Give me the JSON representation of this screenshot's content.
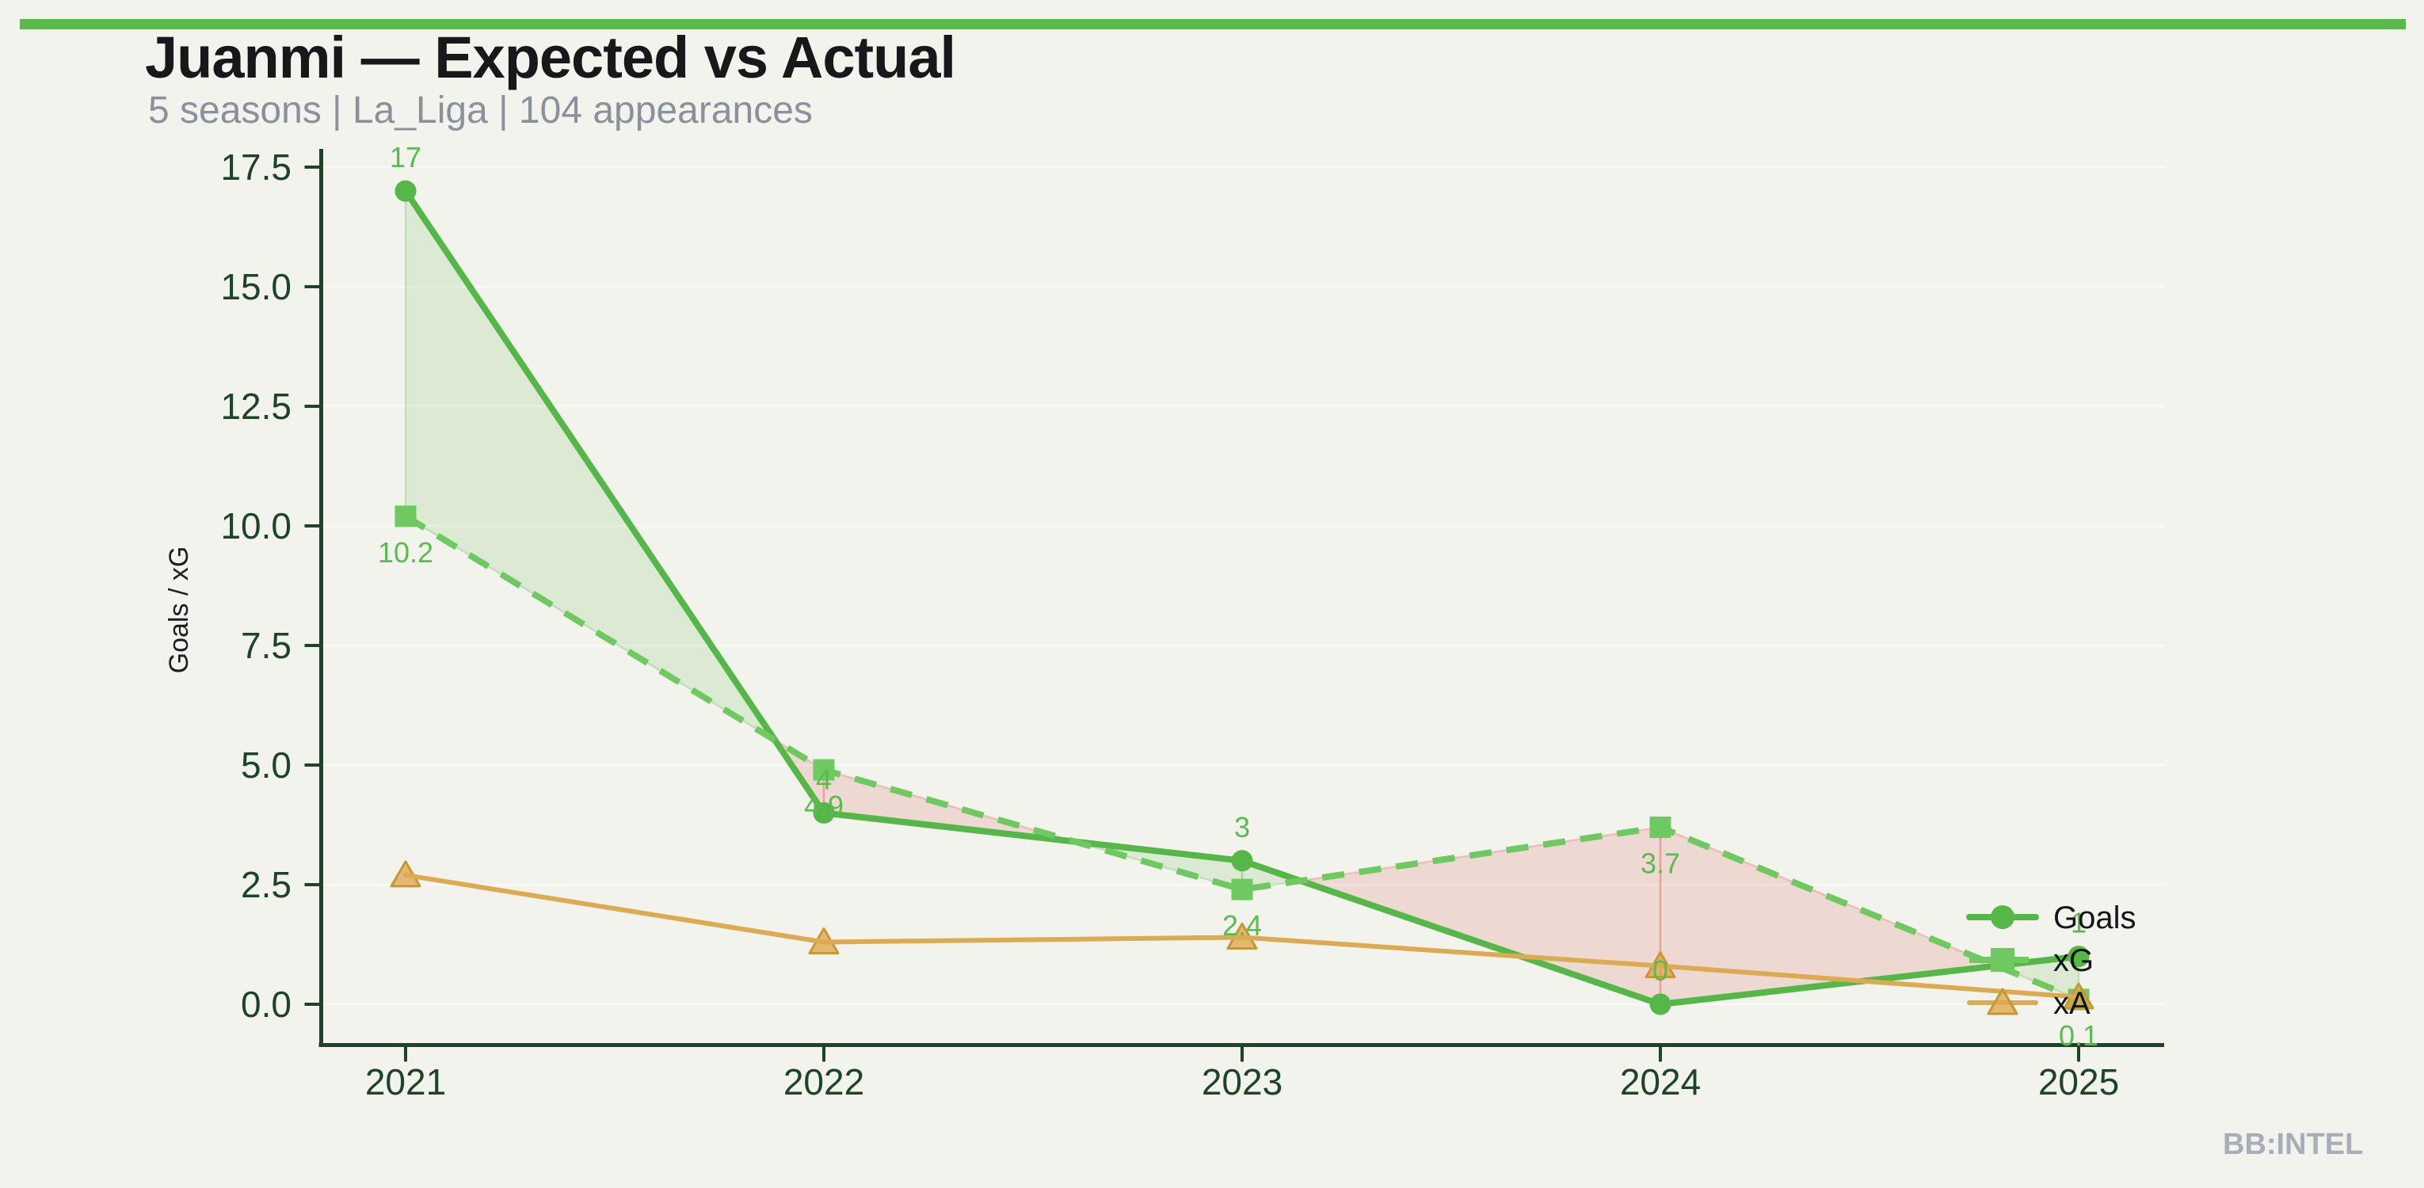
{
  "page": {
    "title": "Juanmi — Expected vs Actual",
    "subtitle": "5 seasons | La_Liga | 104 appearances",
    "watermark": "BB:INTEL",
    "accent_bar_color": "#5bb84d",
    "background_color": "#f2f3ec"
  },
  "chart_data": {
    "type": "line",
    "title": "Juanmi — Expected vs Actual",
    "subtitle": "5 seasons | La_Liga | 104 appearances",
    "x": [
      2021,
      2022,
      2023,
      2024,
      2025
    ],
    "x_tick_labels": [
      "2021",
      "2022",
      "2023",
      "2024",
      "2025"
    ],
    "ylabel": "Goals / xG",
    "xlabel": "",
    "ylim": [
      0,
      17.5
    ],
    "y_ticks": [
      0,
      2.5,
      5,
      7.5,
      10,
      12.5,
      15,
      17.5
    ],
    "y_tick_labels": [
      "0.0",
      "2.5",
      "5.0",
      "7.5",
      "10.0",
      "12.5",
      "15.0",
      "17.5"
    ],
    "grid": "horizontal-faint",
    "legend_position": "right-inside",
    "axis_color": "#1d4328",
    "tick_label_color": "#1d4328",
    "data_label_color": "#5cbb4e",
    "series": [
      {
        "name": "Goals",
        "values": [
          17,
          4,
          3,
          0,
          1
        ],
        "point_labels": [
          "17",
          "4",
          "3",
          "0",
          "1"
        ],
        "label_side": "above",
        "color": "#54b747",
        "marker": "circle",
        "line_style": "solid",
        "line_width": 8
      },
      {
        "name": "xG",
        "values": [
          10.2,
          4.9,
          2.4,
          3.7,
          0.1
        ],
        "point_labels": [
          "10.2",
          "4.9",
          "2.4",
          "3.7",
          "0.1"
        ],
        "label_side": "below",
        "color": "#6fc961",
        "marker": "square",
        "line_style": "dashed",
        "line_width": 8
      },
      {
        "name": "xA",
        "values": [
          2.7,
          1.3,
          1.4,
          0.8,
          0.15
        ],
        "point_labels": [],
        "label_side": "none",
        "color": "#dcaa50",
        "marker": "triangle",
        "marker_face": "rgba(221,166,74,0.75)",
        "marker_edge": "#c79734",
        "line_style": "solid",
        "line_width": 6
      }
    ],
    "fill_between": {
      "series_a": "Goals",
      "series_b": "xG",
      "positive_color": "rgba(110,190,92,0.17)",
      "positive_edge": "rgba(110,190,92,0.30)",
      "negative_color": "rgba(225,122,118,0.22)",
      "negative_edge": "rgba(225,122,118,0.35)"
    }
  },
  "legend": {
    "items": [
      {
        "label": "Goals"
      },
      {
        "label": "xG"
      },
      {
        "label": "xA"
      }
    ]
  }
}
